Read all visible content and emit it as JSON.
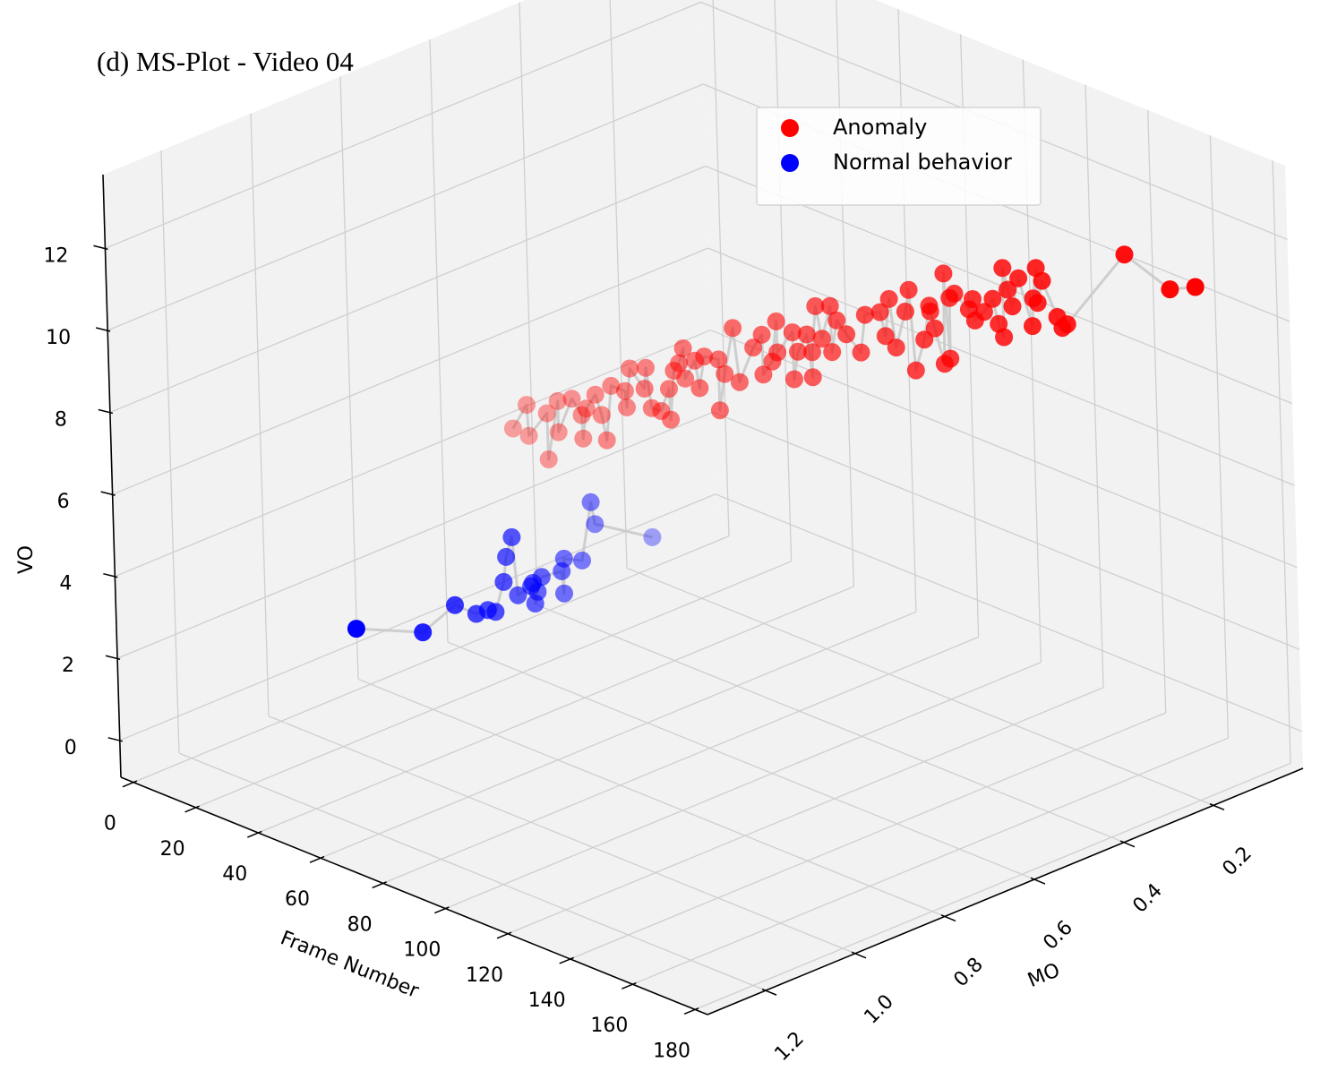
{
  "chart_data": {
    "type": "scatter3d",
    "title": "(d) MS-Plot - Video 04",
    "xlabel": "Frame Number",
    "ylabel": "MO",
    "zlabel": "VO",
    "xlim": [
      -4,
      184
    ],
    "ylim": [
      1.33,
      0
    ],
    "zlim": [
      -0.9,
      13.8
    ],
    "xticks": [
      0,
      20,
      40,
      60,
      80,
      100,
      120,
      140,
      160,
      180
    ],
    "yticks": [
      1.2,
      {
        "value": 1,
        "label": "1.0"
      },
      0.8,
      0.6,
      0.4,
      0.2
    ],
    "zticks": [
      0,
      2,
      4,
      6,
      8,
      10,
      12
    ],
    "grid": true,
    "legend": "upper right",
    "line_color": "#c8c8c8",
    "series": [
      {
        "name": "Anomaly",
        "color": "#ff0000",
        "x": [
          31,
          34,
          34,
          38,
          38,
          40,
          40,
          43,
          45,
          45,
          46,
          48,
          49,
          50,
          51,
          54,
          54,
          55,
          58,
          58,
          59,
          61,
          63,
          63,
          64,
          65,
          66,
          66,
          68,
          69,
          70,
          73,
          73,
          74,
          76,
          77,
          80,
          82,
          82,
          84,
          85,
          85,
          88,
          88,
          89,
          91,
          92,
          92,
          93,
          94,
          96,
          96,
          97,
          99,
          102,
          103,
          106,
          107,
          108,
          109,
          111,
          112,
          113,
          115,
          116,
          116,
          117,
          119,
          119,
          120,
          120,
          121,
          124,
          125,
          125,
          127,
          129,
          130,
          131,
          131,
          132,
          133,
          134,
          137,
          137,
          138,
          138,
          139,
          142,
          143,
          144,
          156,
          165,
          170
        ],
        "y": [
          0.68,
          0.669,
          0.666,
          0.652,
          0.651,
          0.641,
          0.641,
          0.63,
          0.623,
          0.621,
          0.619,
          0.612,
          0.606,
          0.603,
          0.597,
          0.587,
          0.584,
          0.582,
          0.571,
          0.567,
          0.563,
          0.556,
          0.551,
          0.549,
          0.546,
          0.541,
          0.538,
          0.535,
          0.526,
          0.524,
          0.519,
          0.508,
          0.508,
          0.502,
          0.495,
          0.49,
          0.478,
          0.472,
          0.471,
          0.464,
          0.46,
          0.459,
          0.445,
          0.444,
          0.441,
          0.434,
          0.43,
          0.43,
          0.427,
          0.421,
          0.415,
          0.413,
          0.408,
          0.401,
          0.39,
          0.386,
          0.373,
          0.369,
          0.366,
          0.36,
          0.351,
          0.349,
          0.345,
          0.338,
          0.332,
          0.33,
          0.328,
          0.322,
          0.319,
          0.316,
          0.314,
          0.31,
          0.299,
          0.297,
          0.293,
          0.286,
          0.28,
          0.275,
          0.271,
          0.27,
          0.267,
          0.264,
          0.256,
          0.248,
          0.245,
          0.244,
          0.242,
          0.238,
          0.227,
          0.223,
          0.219,
          0.17,
          0.133,
          0.111
        ],
        "z": [
          5.75,
          6.37,
          5.6,
          6.21,
          5.08,
          6.52,
          5.76,
          6.62,
          6.25,
          5.67,
          6.42,
          6.79,
          6.3,
          5.7,
          7.03,
          6.95,
          6.54,
          7.51,
          7.06,
          7.55,
          6.58,
          6.54,
          7.12,
          6.36,
          7.57,
          7.76,
          8.14,
          7.39,
          7.85,
          7.2,
          7.98,
          7.95,
          6.71,
          7.6,
          8.75,
          7.44,
          8.32,
          8.67,
          7.69,
          8.04,
          9.03,
          8.27,
          8.79,
          7.64,
          8.33,
          8.78,
          7.75,
          8.36,
          9.5,
          8.71,
          9.54,
          8.41,
          9.19,
          8.88,
          8.48,
          9.41,
          9.51,
          8.94,
          9.86,
          8.68,
          9.58,
          10.13,
          8.18,
          8.96,
          9.79,
          9.64,
          9.25,
          8.42,
          10.61,
          8.55,
          10.02,
          10.14,
          9.8,
          10.07,
          9.53,
          9.77,
          10.12,
          9.52,
          9.21,
          10.89,
          10.38,
          9.99,
          10.67,
          9.56,
          10.22,
          10.99,
          10.13,
          10.68,
          9.84,
          9.59,
          9.69,
          11.54,
          10.8,
          10.91
        ]
      },
      {
        "name": "Normal behavior",
        "color": "#0000ff",
        "x": [
          0,
          7,
          10,
          12,
          13,
          14,
          15,
          15,
          16,
          16,
          18,
          18,
          18,
          18,
          19,
          21,
          21,
          21,
          23,
          24,
          24,
          30
        ],
        "y": [
          0.828,
          0.729,
          0.677,
          0.644,
          0.625,
          0.615,
          0.602,
          0.595,
          0.588,
          0.578,
          0.562,
          0.558,
          0.554,
          0.548,
          0.545,
          0.514,
          0.51,
          0.508,
          0.482,
          0.466,
          0.458,
          0.373
        ],
        "z": [
          0.58,
          0.26,
          0.78,
          0.48,
          0.52,
          0.46,
          1.16,
          1.74,
          2.22,
          0.76,
          0.97,
          1.03,
          0.51,
          0.77,
          1.15,
          1.21,
          0.65,
          1.49,
          1.39,
          2.77,
          2.2,
          1.68
        ]
      }
    ]
  }
}
